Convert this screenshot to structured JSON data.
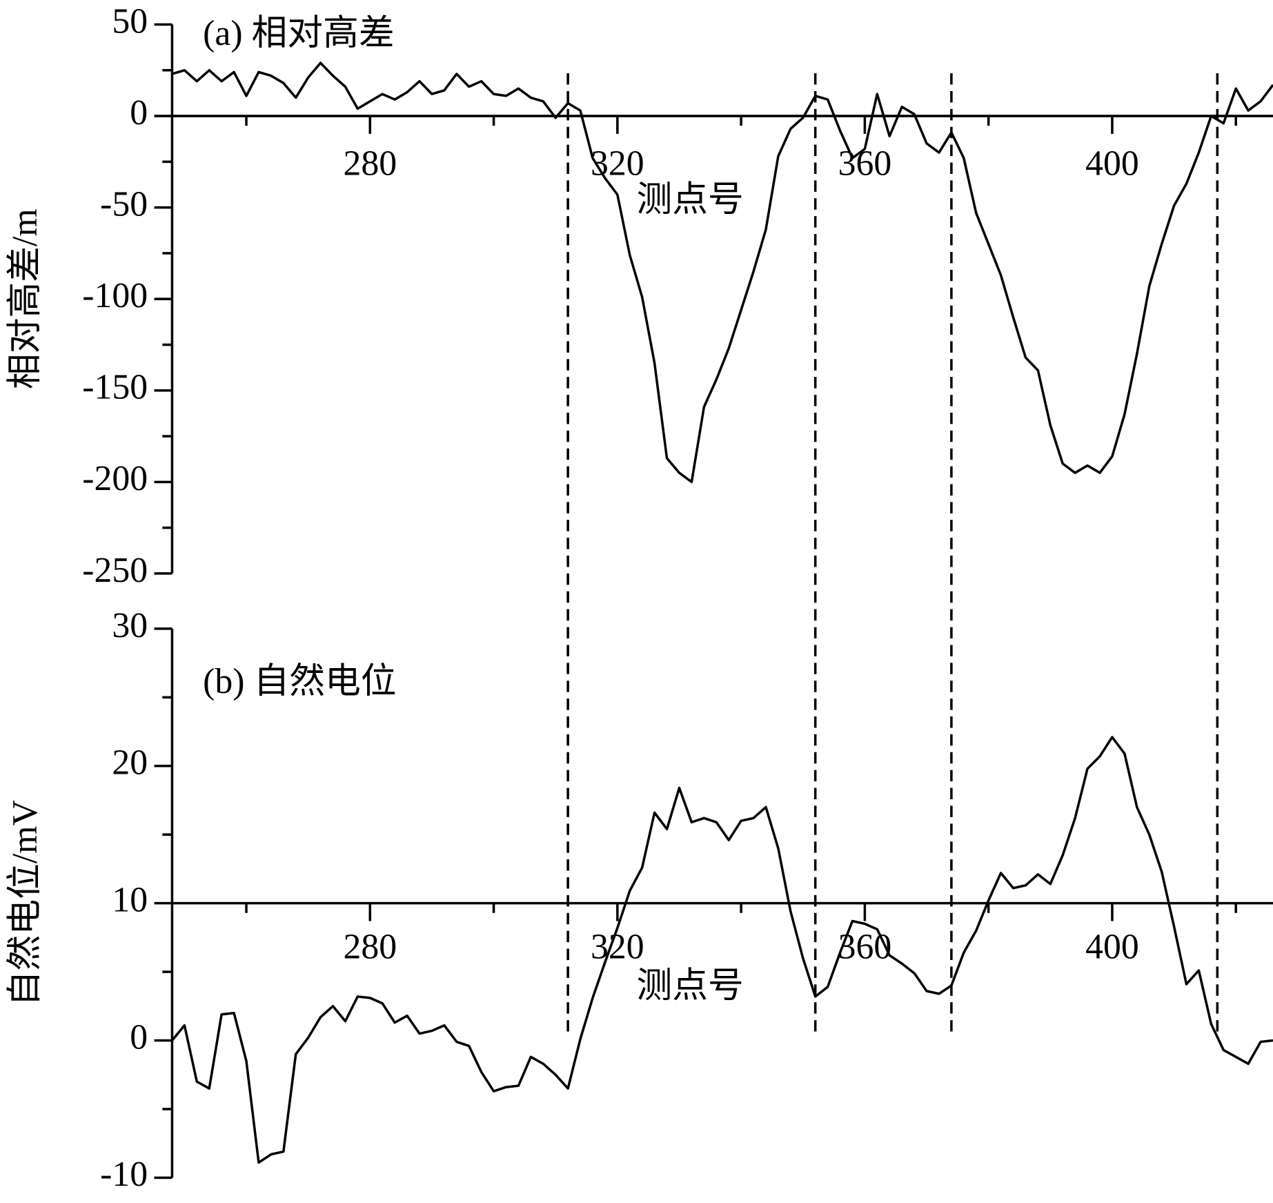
{
  "chart_data": [
    {
      "type": "line",
      "title": "(a) 相对高差",
      "y_label": "相对高差/m",
      "x_label": "测点号",
      "xlim": [
        248,
        426
      ],
      "xticks": [
        280,
        320,
        360,
        400
      ],
      "ylim": [
        -250,
        50
      ],
      "yticks": [
        50,
        0,
        -50,
        -100,
        -150,
        -200,
        -250
      ],
      "xaxis_position": 0,
      "vlines": [
        312,
        352,
        374,
        417
      ],
      "x": [
        248,
        250,
        252,
        254,
        256,
        258,
        260,
        262,
        264,
        266,
        268,
        270,
        272,
        274,
        276,
        278,
        280,
        282,
        284,
        286,
        288,
        290,
        292,
        294,
        296,
        298,
        300,
        302,
        304,
        306,
        308,
        310,
        312,
        314,
        316,
        318,
        320,
        322,
        324,
        326,
        328,
        330,
        332,
        334,
        336,
        338,
        340,
        342,
        344,
        346,
        348,
        350,
        352,
        354,
        356,
        358,
        360,
        362,
        364,
        366,
        368,
        370,
        372,
        374,
        376,
        378,
        380,
        382,
        384,
        386,
        388,
        390,
        392,
        394,
        396,
        398,
        400,
        402,
        404,
        406,
        408,
        410,
        412,
        414,
        416,
        418,
        420,
        422,
        424,
        426
      ],
      "series": [
        {
          "color": "#000000",
          "values": [
            23,
            25,
            19,
            25,
            19,
            24,
            11,
            24,
            22,
            18,
            10,
            21,
            29,
            22,
            16,
            4,
            8,
            12,
            9,
            13,
            19,
            12,
            14,
            23,
            16,
            19,
            12,
            11,
            15,
            10,
            8,
            -1,
            7,
            3,
            -23,
            -34,
            -43,
            -76,
            -99,
            -135,
            -187,
            -195,
            -200,
            -159,
            -144,
            -127,
            -106,
            -85,
            -62,
            -22,
            -7,
            -1,
            11,
            9,
            -8,
            -23,
            -18,
            12,
            -11,
            5,
            1,
            -15,
            -20,
            -9,
            -23,
            -53,
            -70,
            -87,
            -110,
            -132,
            -139,
            -169,
            -190,
            -195,
            -191,
            -195,
            -186,
            -163,
            -130,
            -93,
            -70,
            -49,
            -37,
            -20,
            0,
            -4,
            15,
            3,
            8,
            17
          ]
        }
      ]
    },
    {
      "type": "line",
      "title": "(b) 自然电位",
      "y_label": "自然电位/mV",
      "x_label": "测点号",
      "xlim": [
        248,
        426
      ],
      "xticks": [
        280,
        320,
        360,
        400
      ],
      "ylim": [
        -10,
        30
      ],
      "yticks": [
        30,
        20,
        10,
        0,
        -10
      ],
      "xaxis_position": 10,
      "x": [
        248,
        250,
        252,
        254,
        256,
        258,
        260,
        262,
        264,
        266,
        268,
        270,
        272,
        274,
        276,
        278,
        280,
        282,
        284,
        286,
        288,
        290,
        292,
        294,
        296,
        298,
        300,
        302,
        304,
        306,
        308,
        310,
        312,
        314,
        316,
        318,
        320,
        322,
        324,
        326,
        328,
        330,
        332,
        334,
        336,
        338,
        340,
        342,
        344,
        346,
        348,
        350,
        352,
        354,
        356,
        358,
        360,
        362,
        364,
        366,
        368,
        370,
        372,
        374,
        376,
        378,
        380,
        382,
        384,
        386,
        388,
        390,
        392,
        394,
        396,
        398,
        400,
        402,
        404,
        406,
        408,
        410,
        412,
        414,
        416,
        418,
        420,
        422,
        424,
        426
      ],
      "series": [
        {
          "color": "#000000",
          "values": [
            0,
            1.1,
            -3,
            -3.5,
            1.9,
            2,
            -1.5,
            -8.9,
            -8.3,
            -8.1,
            -1,
            0.2,
            1.7,
            2.5,
            1.4,
            3.2,
            3.1,
            2.7,
            1.3,
            1.8,
            0.5,
            0.7,
            1.1,
            -0.1,
            -0.4,
            -2.3,
            -3.7,
            -3.4,
            -3.3,
            -1.2,
            -1.7,
            -2.5,
            -3.5,
            0.1,
            3.1,
            5.7,
            8.2,
            10.9,
            12.6,
            16.6,
            15.4,
            18.4,
            15.9,
            16.2,
            15.9,
            14.6,
            16,
            16.2,
            17,
            14,
            9.4,
            6,
            3.2,
            3.9,
            6.4,
            8.7,
            8.5,
            8.1,
            6.2,
            5.6,
            4.9,
            3.6,
            3.4,
            4,
            6.4,
            8,
            10.2,
            12.2,
            11.1,
            11.3,
            12.1,
            11.4,
            13.5,
            16.2,
            19.8,
            20.7,
            22.1,
            20.9,
            17,
            15,
            12.3,
            8.3,
            4.1,
            5.1,
            1.2,
            -0.7,
            -1.2,
            -1.7,
            -0.1,
            0
          ]
        }
      ]
    }
  ]
}
